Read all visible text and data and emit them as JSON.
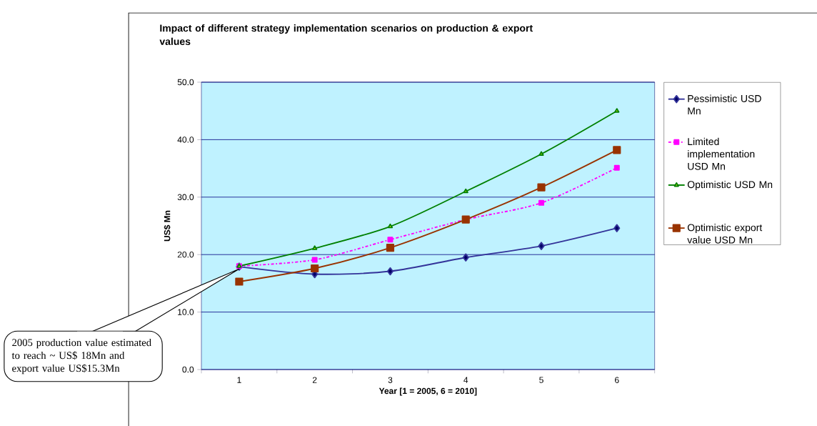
{
  "chart_data": {
    "type": "line",
    "title": "Impact of different strategy implementation scenarios on production & export values",
    "xlabel": "Year [1 = 2005, 6 = 2010]",
    "ylabel": "US$ Mn",
    "categories": [
      "1",
      "2",
      "3",
      "4",
      "5",
      "6"
    ],
    "series": [
      {
        "name": "Pessimistic USD Mn",
        "color": "#333399",
        "marker": "diamond",
        "values": [
          17.9,
          16.6,
          17.1,
          19.5,
          21.5,
          24.6
        ]
      },
      {
        "name": "Limited implementation USD Mn",
        "color": "#ff00ff",
        "marker": "square",
        "line_style": "dashed",
        "values": [
          18.0,
          19.1,
          22.6,
          26.1,
          29.0,
          35.1
        ]
      },
      {
        "name": "Optimistic USD Mn",
        "color": "#008000",
        "marker": "triangle",
        "values": [
          18.0,
          21.1,
          24.9,
          31.0,
          37.5,
          45.0
        ]
      },
      {
        "name": "Optimistic export value USD Mn",
        "color": "#993300",
        "marker": "square",
        "values": [
          15.3,
          17.6,
          21.2,
          26.1,
          31.7,
          38.2
        ]
      }
    ],
    "ylim": [
      0,
      50
    ],
    "yticks": [
      {
        "value": 0,
        "label": "0.0"
      },
      {
        "value": 10,
        "label": "10.0"
      },
      {
        "value": 20,
        "label": "20.0"
      },
      {
        "value": 30,
        "label": "30.0"
      },
      {
        "value": 40,
        "label": "40.0"
      },
      {
        "value": 50,
        "label": "50.0"
      }
    ],
    "grid": "y",
    "legend": "right",
    "annotations": [
      {
        "text": "2005 production value estimated to reach ~ US$ 18Mn and export value US$15.3Mn",
        "x": "1",
        "y": 17.5
      }
    ]
  }
}
